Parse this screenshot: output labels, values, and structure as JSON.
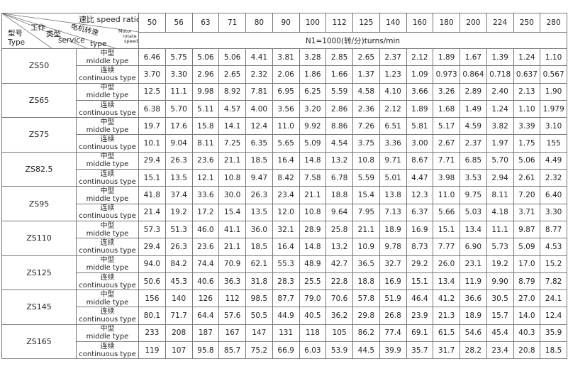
{
  "header": {
    "corner": {
      "ratio": "速比 speed ratio",
      "service_zh1": "工作",
      "service_zh2": "类型",
      "service_en1": "service",
      "service_en2": "type",
      "motor_zh": "电机转速",
      "motor_en1": "Motor",
      "motor_en2": "rotate",
      "motor_en3": "speed",
      "model_zh": "型号",
      "model_en": "Type"
    },
    "ratios": [
      "50",
      "56",
      "63",
      "71",
      "80",
      "90",
      "100",
      "112",
      "125",
      "140",
      "160",
      "180",
      "200",
      "224",
      "250",
      "280"
    ],
    "speed": "N1=1000(转/分)turns/min"
  },
  "rows": [
    {
      "model": "ZS50",
      "types": [
        {
          "zh": "中型",
          "en": "middle type",
          "values": [
            "6.46",
            "5.75",
            "5.06",
            "5.06",
            "4.41",
            "3.81",
            "3.28",
            "2.85",
            "2.65",
            "2.37",
            "2.12",
            "1.89",
            "1.67",
            "1.39",
            "1.24",
            "1.10"
          ]
        },
        {
          "zh": "连续",
          "en": "continuous type",
          "values": [
            "3.70",
            "3.30",
            "2.96",
            "2.65",
            "2.32",
            "2.06",
            "1.86",
            "1.66",
            "1.37",
            "1.23",
            "1.09",
            "0.973",
            "0.864",
            "0.718",
            "0.637",
            "0.567"
          ]
        }
      ]
    },
    {
      "model": "ZS65",
      "types": [
        {
          "zh": "中型",
          "en": "middle type",
          "values": [
            "12.5",
            "11.1",
            "9.98",
            "8.92",
            "7.81",
            "6.95",
            "6.25",
            "5.59",
            "4.58",
            "4.10",
            "3.66",
            "3.26",
            "2.89",
            "2.40",
            "2.13",
            "1.90"
          ]
        },
        {
          "zh": "连续",
          "en": "continuous type",
          "values": [
            "6.38",
            "5.70",
            "5.11",
            "4.57",
            "4.00",
            "3.56",
            "3.20",
            "2.86",
            "2.36",
            "2.12",
            "1.89",
            "1.68",
            "1.49",
            "1.24",
            "1.10",
            "1.979"
          ]
        }
      ]
    },
    {
      "model": "ZS75",
      "types": [
        {
          "zh": "中型",
          "en": "middle type",
          "values": [
            "19.7",
            "17.6",
            "15.8",
            "14.1",
            "12.4",
            "11.0",
            "9.92",
            "8.86",
            "7.26",
            "6.51",
            "5.81",
            "5.17",
            "4.59",
            "3.82",
            "3.39",
            "3.10"
          ]
        },
        {
          "zh": "连续",
          "en": "continuous type",
          "values": [
            "10.1",
            "9.04",
            "8.11",
            "7.25",
            "6.35",
            "5.65",
            "5.09",
            "4.54",
            "3.75",
            "3.36",
            "3.00",
            "2.67",
            "2.37",
            "1.97",
            "1.75",
            "155"
          ]
        }
      ]
    },
    {
      "model": "ZS82.5",
      "types": [
        {
          "zh": "中型",
          "en": "middle type",
          "values": [
            "29.4",
            "26.3",
            "23.6",
            "21.1",
            "18.5",
            "16.4",
            "14.8",
            "13.2",
            "10.8",
            "9.71",
            "8.67",
            "7.71",
            "6.85",
            "5.70",
            "5.06",
            "4.49"
          ]
        },
        {
          "zh": "连续",
          "en": "continuous type",
          "values": [
            "15.1",
            "13.5",
            "12.1",
            "10.8",
            "9.47",
            "8.42",
            "7.58",
            "6.78",
            "5.59",
            "5.01",
            "4.47",
            "3.98",
            "3.53",
            "2.94",
            "2.61",
            "2.32"
          ]
        }
      ]
    },
    {
      "model": "ZS95",
      "types": [
        {
          "zh": "中型",
          "en": "middle type",
          "values": [
            "41.8",
            "37.4",
            "33.6",
            "30.0",
            "26.3",
            "23.4",
            "21.1",
            "18.8",
            "15.4",
            "13.8",
            "12.3",
            "11.0",
            "9.75",
            "8.11",
            "7.20",
            "6.40"
          ]
        },
        {
          "zh": "连续",
          "en": "continuous type",
          "values": [
            "21.4",
            "19.2",
            "17.2",
            "15.4",
            "13.5",
            "12.0",
            "10.8",
            "9.64",
            "7.95",
            "7.13",
            "6.37",
            "5.66",
            "5.03",
            "4.18",
            "3.71",
            "3.30"
          ]
        }
      ]
    },
    {
      "model": "ZS110",
      "types": [
        {
          "zh": "中型",
          "en": "middle type",
          "values": [
            "57.3",
            "51.3",
            "46.0",
            "41.1",
            "36.0",
            "32.1",
            "28.9",
            "25.8",
            "21.1",
            "18.9",
            "16.9",
            "15.1",
            "13.4",
            "11.1",
            "9.87",
            "8.77"
          ]
        },
        {
          "zh": "连续",
          "en": "continuous type",
          "values": [
            "29.4",
            "26.3",
            "23.6",
            "21.1",
            "18.5",
            "16.4",
            "14.8",
            "13.2",
            "10.9",
            "9.78",
            "8.73",
            "7.77",
            "6.90",
            "5.73",
            "5.09",
            "4.53"
          ]
        }
      ]
    },
    {
      "model": "ZS125",
      "types": [
        {
          "zh": "中型",
          "en": "middle type",
          "values": [
            "94.0",
            "84.2",
            "74.4",
            "70.9",
            "62.1",
            "55.3",
            "48.9",
            "42.7",
            "36.5",
            "32.7",
            "29.2",
            "26.0",
            "23.1",
            "19.2",
            "17.0",
            "15.2"
          ]
        },
        {
          "zh": "连续",
          "en": "continuous type",
          "values": [
            "50.6",
            "45.3",
            "40.6",
            "36.3",
            "31.8",
            "28.3",
            "25.5",
            "22.8",
            "18.8",
            "16.9",
            "15.1",
            "13.4",
            "11.9",
            "9.90",
            "8.79",
            "7.82"
          ]
        }
      ]
    },
    {
      "model": "ZS145",
      "types": [
        {
          "zh": "中型",
          "en": "middle type",
          "values": [
            "156",
            "140",
            "126",
            "112",
            "98.5",
            "87.7",
            "79.0",
            "70.6",
            "57.8",
            "51.9",
            "46.4",
            "41.2",
            "36.6",
            "30.5",
            "27.0",
            "24.1"
          ]
        },
        {
          "zh": "连续",
          "en": "continuous type",
          "values": [
            "80.1",
            "71.7",
            "64.4",
            "57.6",
            "50.5",
            "44.9",
            "40.5",
            "36.2",
            "29.8",
            "26.8",
            "23.9",
            "21.3",
            "18.9",
            "15.7",
            "14.0",
            "12.4"
          ]
        }
      ]
    },
    {
      "model": "ZS165",
      "types": [
        {
          "zh": "中型",
          "en": "middle type",
          "values": [
            "233",
            "208",
            "187",
            "167",
            "147",
            "131",
            "118",
            "105",
            "86.2",
            "77.4",
            "69.1",
            "61.5",
            "54.6",
            "45.4",
            "40.3",
            "35.9"
          ]
        },
        {
          "zh": "连续",
          "en": "continuous type",
          "values": [
            "119",
            "107",
            "95.8",
            "85.7",
            "75.2",
            "66.9",
            "6.03",
            "53.9",
            "44.5",
            "39.9",
            "35.7",
            "31.7",
            "28.2",
            "23.4",
            "20.8",
            "18.5"
          ]
        }
      ]
    }
  ]
}
